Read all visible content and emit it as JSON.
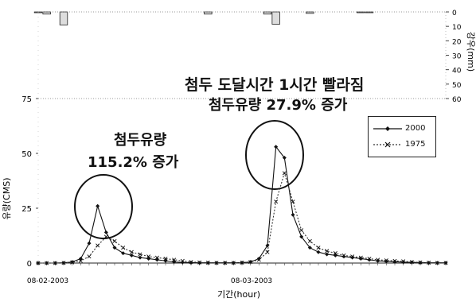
{
  "chart_data": {
    "type": "line",
    "title": "",
    "xlabel": "기간(hour)",
    "ylabel": "유량(CMS)",
    "y2label": "강우(mm)",
    "ylim": [
      0,
      75
    ],
    "y2lim": [
      0,
      60
    ],
    "yticks": [
      "0",
      "25",
      "50",
      "75"
    ],
    "y2ticks": [
      "0",
      "10",
      "20",
      "30",
      "40",
      "50",
      "60"
    ],
    "x_tick_labels": [
      "08-02-2003",
      "08-03-2003"
    ],
    "x_tick_hours": [
      0,
      24
    ],
    "x_range": [
      0,
      48
    ],
    "series": [
      {
        "name": "2000",
        "color": "#111111",
        "marker": "diamond",
        "x": [
          0,
          1,
          2,
          3,
          4,
          5,
          6,
          7,
          8,
          9,
          10,
          11,
          12,
          13,
          14,
          15,
          16,
          17,
          18,
          19,
          20,
          21,
          22,
          23,
          24,
          25,
          26,
          27,
          28,
          29,
          30,
          31,
          32,
          33,
          34,
          35,
          36,
          37,
          38,
          39,
          40,
          41,
          42,
          43,
          44,
          45,
          46,
          47,
          48
        ],
        "values": [
          0,
          0,
          0,
          0.1,
          0.5,
          2,
          9,
          26,
          14,
          7,
          4.5,
          3.5,
          2.5,
          2,
          1.5,
          1,
          0.5,
          0.3,
          0.2,
          0.1,
          0.1,
          0.1,
          0.1,
          0.1,
          0.2,
          0.5,
          2,
          8,
          53,
          48,
          22,
          12,
          7,
          5,
          4,
          3.5,
          3,
          2.5,
          2,
          1.5,
          1,
          0.8,
          0.6,
          0.4,
          0.3,
          0.2,
          0.1,
          0.1,
          0.1
        ]
      },
      {
        "name": "1975",
        "color": "#333333",
        "marker": "x",
        "x": [
          0,
          1,
          2,
          3,
          4,
          5,
          6,
          7,
          8,
          9,
          10,
          11,
          12,
          13,
          14,
          15,
          16,
          17,
          18,
          19,
          20,
          21,
          22,
          23,
          24,
          25,
          26,
          27,
          28,
          29,
          30,
          31,
          32,
          33,
          34,
          35,
          36,
          37,
          38,
          39,
          40,
          41,
          42,
          43,
          44,
          45,
          46,
          47,
          48
        ],
        "values": [
          0,
          0,
          0,
          0.1,
          0.3,
          1,
          3,
          8,
          12,
          10,
          7,
          5,
          4,
          3,
          2.5,
          2,
          1.5,
          1,
          0.5,
          0.3,
          0.2,
          0.1,
          0.1,
          0.1,
          0.2,
          0.5,
          1.5,
          5,
          28,
          41,
          28,
          15,
          10,
          7,
          5.5,
          4.5,
          3.5,
          3,
          2.5,
          2,
          1.5,
          1.2,
          1,
          0.8,
          0.5,
          0.3,
          0.2,
          0.1,
          0.1
        ]
      }
    ],
    "rainfall": {
      "name": "rainfall",
      "x": [
        0,
        1,
        3,
        20,
        27,
        28,
        32,
        38,
        39
      ],
      "values": [
        0.5,
        1.5,
        9,
        1.5,
        1.5,
        8.5,
        1,
        0.5,
        0.5
      ]
    },
    "annotations": {
      "peak_2_line1": "첨두 도달시간 1시간 빨라짐",
      "peak_2_line2": "첨두유량 27.9% 증가",
      "peak_1_line1": "첨두유량",
      "peak_1_line2": "115.2% 증가"
    },
    "legend_position": "upper-right",
    "grid": false
  }
}
